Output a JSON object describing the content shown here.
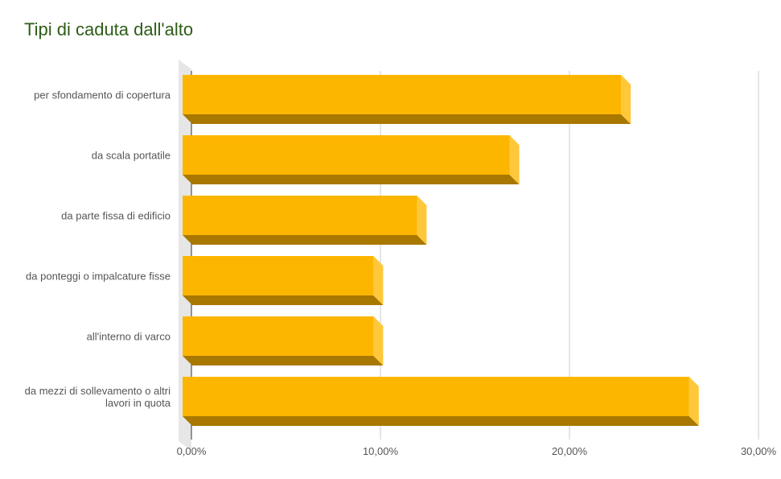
{
  "chart_data": {
    "type": "bar3d",
    "orientation": "horizontal",
    "title": "Tipi di caduta dall'alto",
    "categories": [
      "per sfondamento di copertura",
      "da scala portatile",
      "da parte fissa di edificio",
      "da ponteggi o impalcature fisse",
      "all'interno di varco",
      "da mezzi di sollevamento o altri lavori in quota"
    ],
    "values": [
      23.2,
      17.3,
      12.4,
      10.1,
      10.1,
      26.8
    ],
    "color": "#fdb600",
    "xlim": [
      0,
      30
    ],
    "xticks": [
      {
        "value": 0,
        "label": "0,00%"
      },
      {
        "value": 10,
        "label": "10,00%"
      },
      {
        "value": 20,
        "label": "20,00%"
      },
      {
        "value": 30,
        "label": "30,00%"
      }
    ],
    "grid": true
  }
}
